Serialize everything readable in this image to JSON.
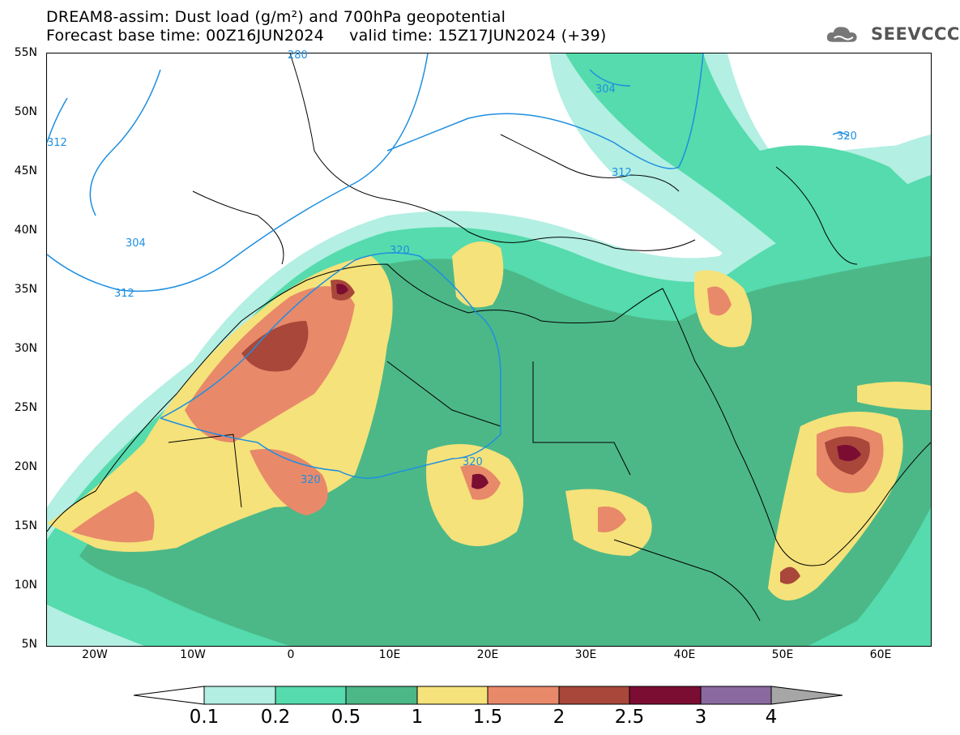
{
  "title": {
    "line1": "DREAM8-assim: Dust load (g/m²) and 700hPa geopotential",
    "line2": "Forecast base time: 00Z16JUN2024     valid time: 15Z17JUN2024 (+39)"
  },
  "logo": {
    "text": "SEEVCCC",
    "icon": "cloud-icon"
  },
  "map": {
    "lat_labels": [
      "55N",
      "50N",
      "45N",
      "40N",
      "35N",
      "30N",
      "25N",
      "20N",
      "15N",
      "10N",
      "5N"
    ],
    "lon_labels": [
      "20W",
      "10W",
      "0",
      "10E",
      "20E",
      "30E",
      "40E",
      "50E",
      "60E"
    ],
    "lon_range": [
      -25,
      65
    ],
    "lat_range": [
      5,
      55
    ],
    "contour_labels": [
      "312",
      "304",
      "312",
      "320",
      "304",
      "312",
      "320",
      "320",
      "320",
      "280"
    ]
  },
  "colorbar": {
    "tick_labels": [
      "0.1",
      "0.2",
      "0.5",
      "1",
      "1.5",
      "2",
      "2.5",
      "3",
      "4"
    ],
    "colors": [
      "#ffffff",
      "#b3efe2",
      "#55dbad",
      "#4cb888",
      "#f5e27a",
      "#e8896a",
      "#a8473a",
      "#7b0d33",
      "#8a69a0",
      "#a6a6a6"
    ]
  }
}
